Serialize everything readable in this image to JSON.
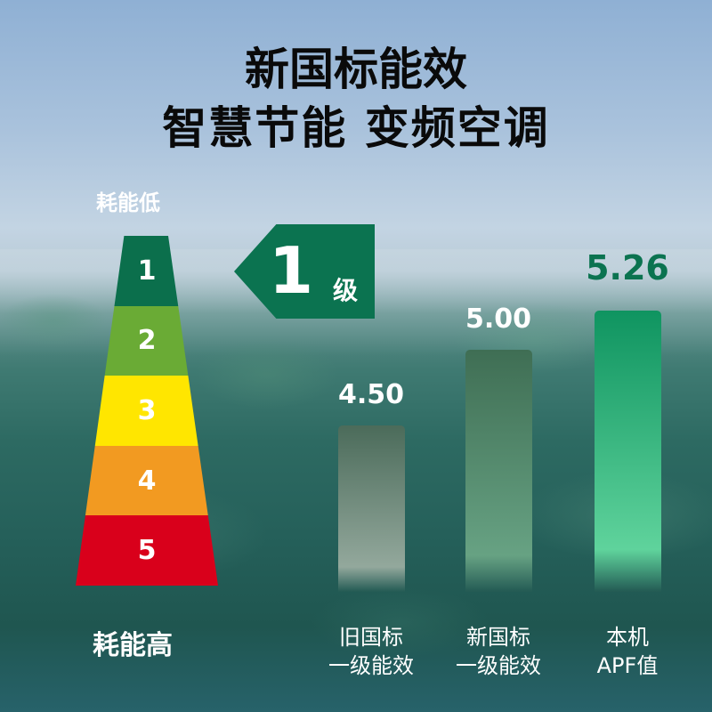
{
  "title": {
    "line1": "新国标能效",
    "line2": "智慧节能 变频空调"
  },
  "ladder": {
    "low_label": "耗能低",
    "high_label": "耗能高",
    "levels": [
      {
        "label": "1",
        "color": "#0b6f4c"
      },
      {
        "label": "2",
        "color": "#6aab35"
      },
      {
        "label": "3",
        "color": "#ffe600"
      },
      {
        "label": "4",
        "color": "#f29a21"
      },
      {
        "label": "5",
        "color": "#d9001b"
      }
    ]
  },
  "grade_tag": {
    "number": "1",
    "unit": "级",
    "color": "#0b7350"
  },
  "chart_data": {
    "type": "bar",
    "categories": [
      [
        "旧国标",
        "一级能效"
      ],
      [
        "新国标",
        "一级能效"
      ],
      [
        "本机",
        "APF值"
      ]
    ],
    "values": [
      4.5,
      5.0,
      5.26
    ],
    "data_labels": [
      "4.50",
      "5.00",
      "5.26"
    ],
    "ylim": [
      3.4,
      5.4
    ],
    "colors": [
      [
        "#4b6b5a",
        "#93a89c"
      ],
      [
        "#3f6e54",
        "#67a283"
      ],
      [
        "#0f9460",
        "#5fd39c"
      ]
    ],
    "label_colors": [
      "#ffffff",
      "#ffffff",
      "#0b7350"
    ]
  }
}
